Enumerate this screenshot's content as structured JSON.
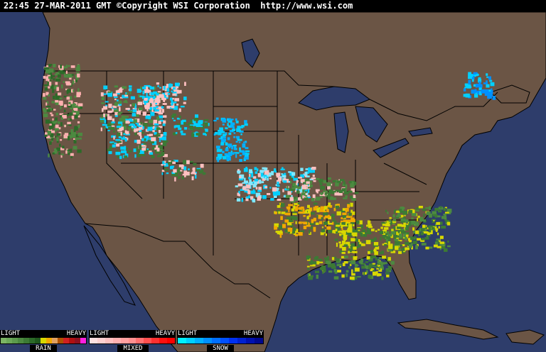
{
  "header": {
    "timestamp": "22:45 27-MAR-2011 GMT",
    "copyright": "©Copyright WSI Corporation",
    "url": "http://www.wsi.com"
  },
  "colors": {
    "ocean": "#2e3d6b",
    "land": "#6b5545",
    "borders": "#000000"
  },
  "legend": [
    {
      "name": "RAIN",
      "light": "LIGHT",
      "heavy": "HEAVY",
      "colors": [
        "#7cb464",
        "#6ca858",
        "#5c9a4c",
        "#4c8a40",
        "#3c7a34",
        "#2c6a28",
        "#1f581c",
        "#d8d800",
        "#f0a800",
        "#e0a060",
        "#b05000",
        "#d02020",
        "#b01010",
        "#901020",
        "#ff20e0"
      ]
    },
    {
      "name": "MIXED",
      "light": "LIGHT",
      "heavy": "HEAVY",
      "colors": [
        "#ffe0e0",
        "#ffd0d0",
        "#ffc0c0",
        "#ffb0b0",
        "#ffa0a0",
        "#ff9090",
        "#ff7070",
        "#ff5050",
        "#ff3030",
        "#ff1010",
        "#ff0000"
      ]
    },
    {
      "name": "SNOW",
      "light": "LIGHT",
      "heavy": "HEAVY",
      "colors": [
        "#00f0ff",
        "#00d0ff",
        "#00b0ff",
        "#0090ff",
        "#0070ff",
        "#0050ff",
        "#0030f0",
        "#0020d0",
        "#0010b0",
        "#000890"
      ]
    }
  ]
}
